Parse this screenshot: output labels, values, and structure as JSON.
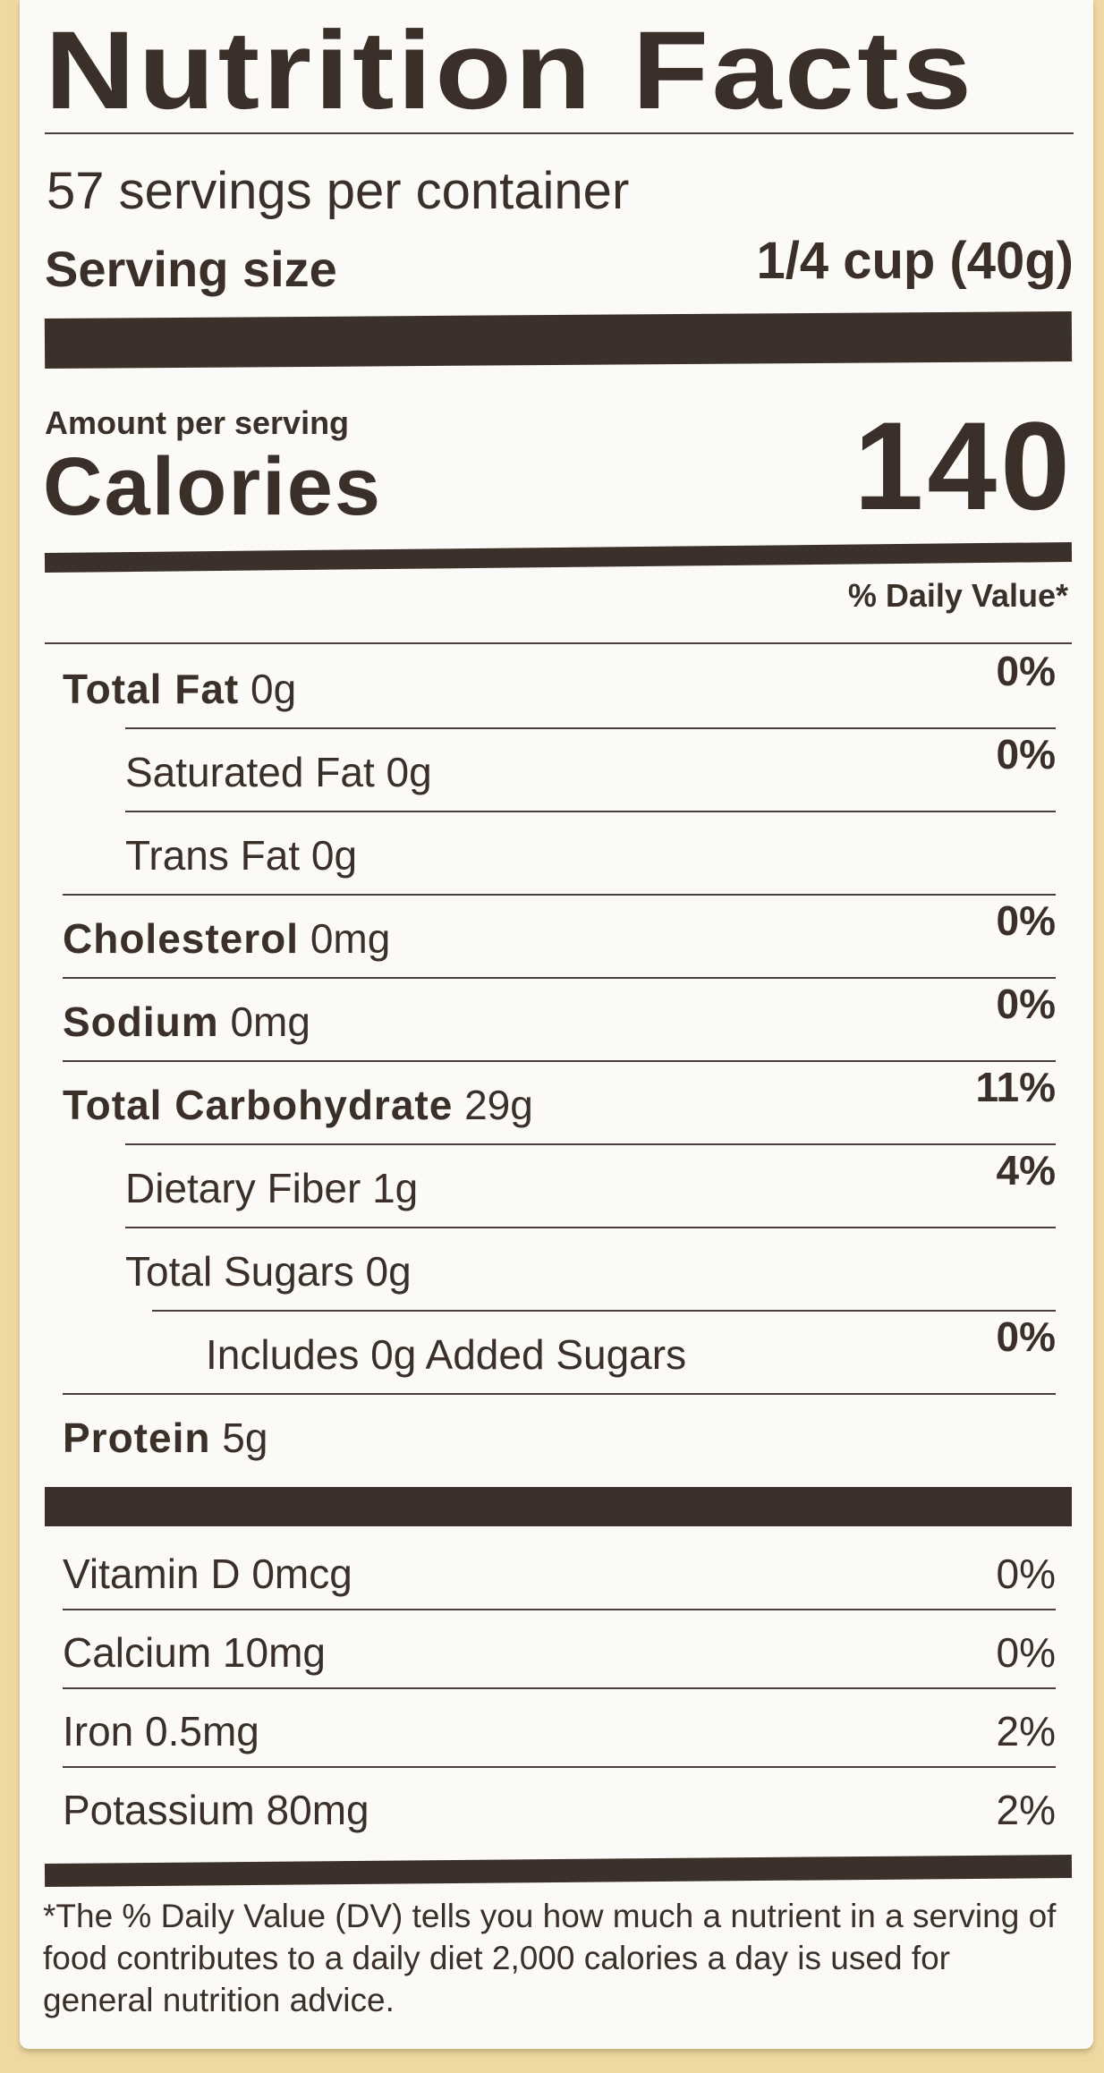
{
  "title": "Nutrition Facts",
  "servings_per_container": "57 servings per container",
  "serving_size": {
    "label": "Serving size",
    "value": "1/4 cup (40g)"
  },
  "amount_per_serving": "Amount per serving",
  "calories": {
    "label": "Calories",
    "value": "140"
  },
  "daily_value_header": "% Daily Value*",
  "nutrients": [
    {
      "name": "Total Fat",
      "amount": "0g",
      "dv": "0%",
      "bold": true,
      "indent": 0
    },
    {
      "name": "Saturated Fat",
      "amount": "0g",
      "dv": "0%",
      "bold": false,
      "indent": 1
    },
    {
      "name": "Trans Fat",
      "amount": "0g",
      "dv": "",
      "bold": false,
      "indent": 1
    },
    {
      "name": "Cholesterol",
      "amount": "0mg",
      "dv": "0%",
      "bold": true,
      "indent": 0
    },
    {
      "name": "Sodium",
      "amount": "0mg",
      "dv": "0%",
      "bold": true,
      "indent": 0
    },
    {
      "name": "Total Carbohydrate",
      "amount": "29g",
      "dv": "11%",
      "bold": true,
      "indent": 0
    },
    {
      "name": "Dietary Fiber",
      "amount": "1g",
      "dv": "4%",
      "bold": false,
      "indent": 1
    },
    {
      "name": "Total Sugars",
      "amount": "0g",
      "dv": "",
      "bold": false,
      "indent": 1
    },
    {
      "name": "Includes 0g Added Sugars",
      "amount": "",
      "dv": "0%",
      "bold": false,
      "indent": 2
    },
    {
      "name": "Protein",
      "amount": "5g",
      "dv": "",
      "bold": true,
      "indent": 0
    }
  ],
  "vitamins": [
    {
      "name": "Vitamin D 0mcg",
      "dv": "0%"
    },
    {
      "name": "Calcium 10mg",
      "dv": "0%"
    },
    {
      "name": "Iron 0.5mg",
      "dv": "2%"
    },
    {
      "name": "Potassium 80mg",
      "dv": "2%"
    }
  ],
  "footnote": "*The % Daily Value (DV) tells you how much a nutrient in a serving of food contributes to a daily diet 2,000 calories a day is used for general nutrition advice.",
  "colors": {
    "ink": "#3a2f29",
    "label_bg": "#fbfaf6",
    "package_bg": "#eed9a2"
  }
}
